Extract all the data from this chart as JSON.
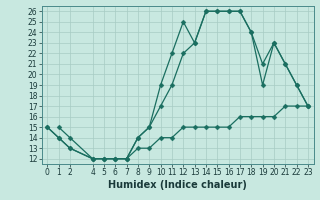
{
  "xlabel": "Humidex (Indice chaleur)",
  "xlim": [
    -0.5,
    23.5
  ],
  "ylim": [
    11.5,
    26.5
  ],
  "xticks": [
    0,
    1,
    2,
    4,
    5,
    6,
    7,
    8,
    9,
    10,
    11,
    12,
    13,
    14,
    15,
    16,
    17,
    18,
    19,
    20,
    21,
    22,
    23
  ],
  "yticks": [
    12,
    13,
    14,
    15,
    16,
    17,
    18,
    19,
    20,
    21,
    22,
    23,
    24,
    25,
    26
  ],
  "background_color": "#c8e8e0",
  "grid_color": "#a8ccc4",
  "line_color": "#1a6e60",
  "line1_x": [
    0,
    1,
    2,
    4,
    5,
    6,
    7,
    8,
    9,
    10,
    11,
    12,
    13,
    14,
    15,
    16,
    17,
    18,
    19,
    20,
    21,
    22,
    23
  ],
  "line1_y": [
    15,
    14,
    13,
    12,
    12,
    12,
    12,
    14,
    15,
    19,
    22,
    25,
    23,
    26,
    26,
    26,
    26,
    24,
    21,
    23,
    21,
    19,
    17
  ],
  "line2_x": [
    1,
    2,
    4,
    5,
    6,
    7,
    8,
    9,
    10,
    11,
    12,
    13,
    14,
    15,
    16,
    17,
    18,
    19,
    20,
    21,
    22,
    23
  ],
  "line2_y": [
    15,
    14,
    12,
    12,
    12,
    12,
    14,
    15,
    17,
    19,
    22,
    23,
    26,
    26,
    26,
    26,
    24,
    19,
    23,
    21,
    19,
    17
  ],
  "line3_x": [
    0,
    1,
    2,
    4,
    5,
    6,
    7,
    8,
    9,
    10,
    11,
    12,
    13,
    14,
    15,
    16,
    17,
    18,
    19,
    20,
    21,
    22,
    23
  ],
  "line3_y": [
    15,
    14,
    13,
    12,
    12,
    12,
    12,
    13,
    13,
    14,
    14,
    15,
    15,
    15,
    15,
    15,
    16,
    16,
    16,
    16,
    17,
    17,
    17
  ],
  "marker_size": 2.5,
  "line_width": 0.9,
  "font_size_axis": 7,
  "font_size_ticks": 5.5
}
